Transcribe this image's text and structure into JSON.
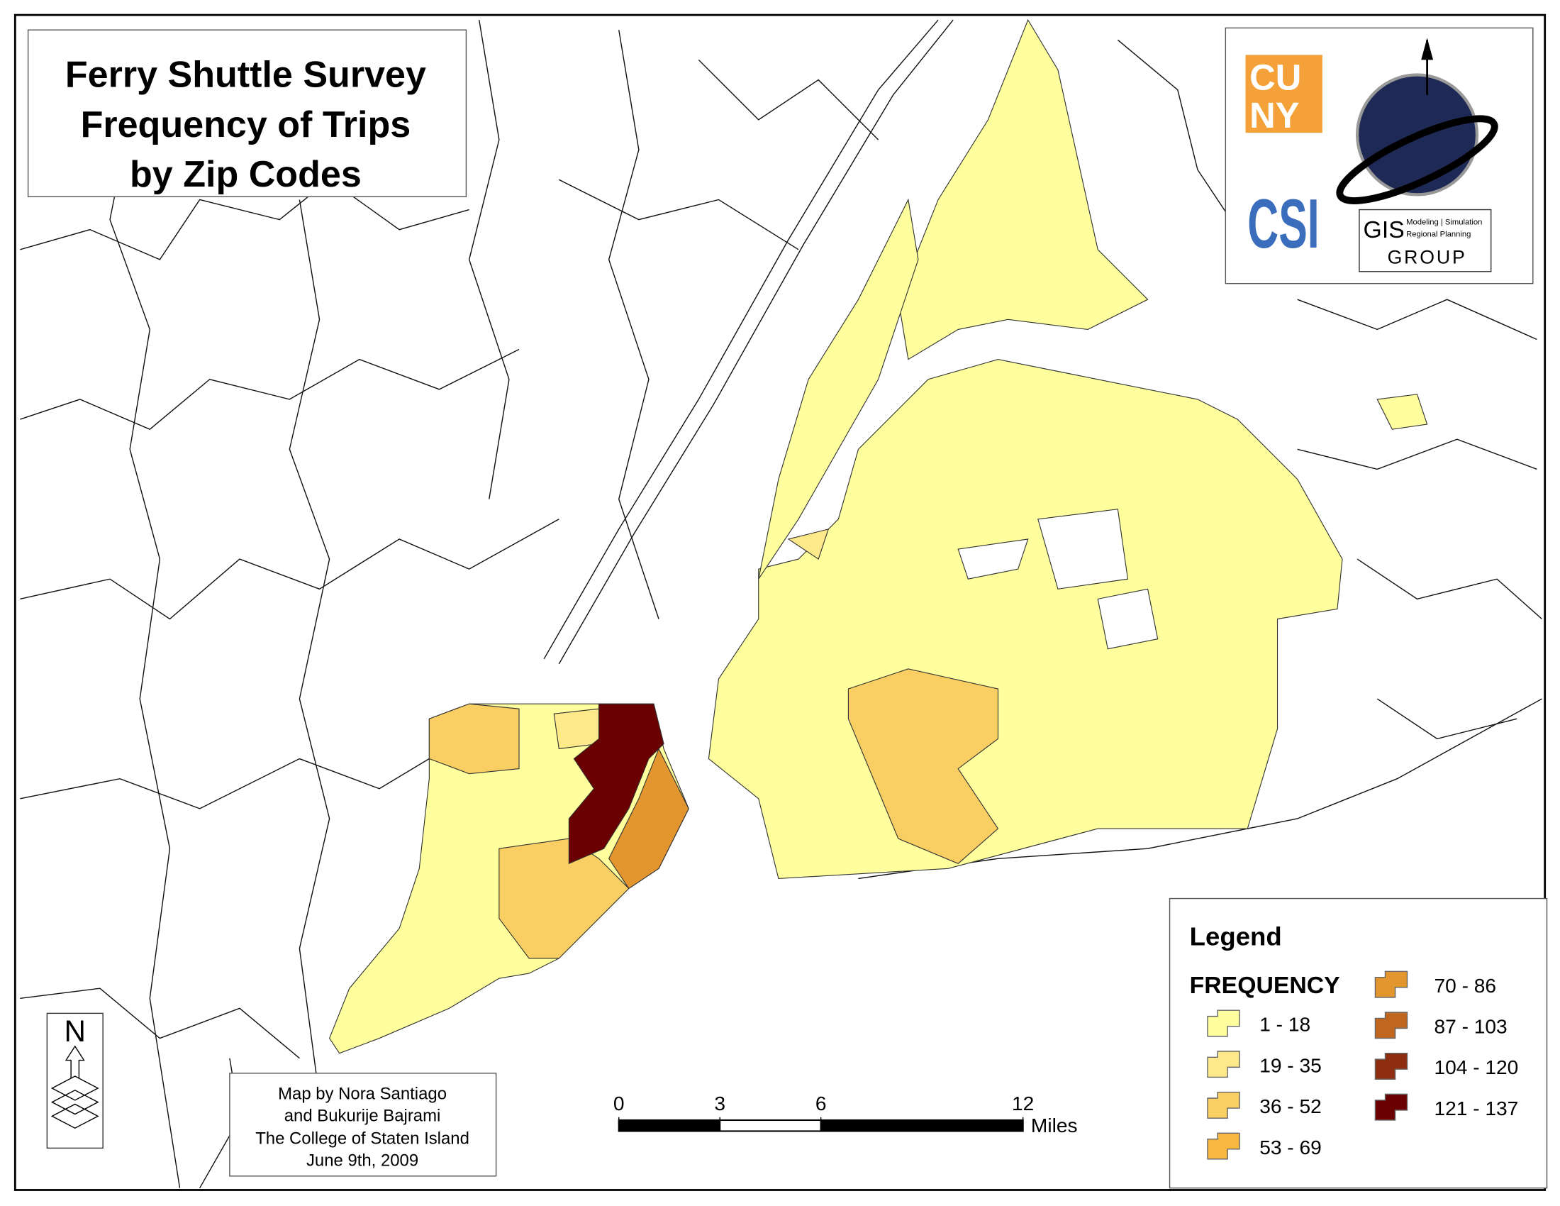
{
  "title": {
    "lines": [
      "Ferry Shuttle Survey",
      "Frequency of Trips",
      "by Zip Codes"
    ]
  },
  "logos": {
    "cuny": [
      "CU",
      "NY"
    ],
    "csi": "CSI",
    "gis": {
      "name": "GIS",
      "sub": [
        "Modeling | Simulation",
        "Regional Planning"
      ],
      "group": "GROUP"
    }
  },
  "north_arrow": "N",
  "legend": {
    "title": "Legend",
    "subtitle": "FREQUENCY",
    "items": [
      {
        "label": "1 - 18",
        "color": "#ffff9e"
      },
      {
        "label": "19 - 35",
        "color": "#fde98a"
      },
      {
        "label": "36 - 52",
        "color": "#f9cf63"
      },
      {
        "label": "53 - 69",
        "color": "#f7b740"
      },
      {
        "label": "70 - 86",
        "color": "#e3962f"
      },
      {
        "label": "87 - 103",
        "color": "#c0661f"
      },
      {
        "label": "104 - 120",
        "color": "#8c2e0f"
      },
      {
        "label": "121 - 137",
        "color": "#6b0000"
      }
    ]
  },
  "scale_bar": {
    "ticks": [
      0,
      3,
      6,
      12
    ],
    "unit": "Miles"
  },
  "credits": [
    "Map by Nora Santiago",
    "and Bukurije Bajrami",
    "The College of Staten Island",
    "June 9th, 2009"
  ]
}
